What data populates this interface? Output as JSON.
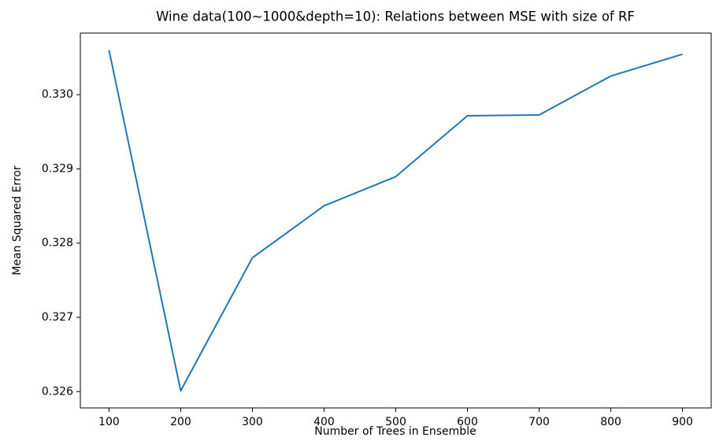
{
  "chart_data": {
    "type": "line",
    "title": "Wine data(100~1000&depth=10): Relations between MSE with size of RF",
    "x_label": "Number of Trees in Ensemble",
    "y_label": "Mean Squared Error",
    "x": [
      100,
      200,
      300,
      400,
      500,
      600,
      700,
      800,
      900
    ],
    "series": [
      {
        "color": "#1f77b4",
        "values": [
          0.330601,
          0.326011,
          0.327803,
          0.328503,
          0.328896,
          0.329716,
          0.329727,
          0.330251,
          0.330546
        ]
      }
    ],
    "xlim": [
      60,
      940
    ],
    "xticks": [
      100,
      200,
      300,
      400,
      500,
      600,
      700,
      800,
      900
    ],
    "ylim": [
      0.32578,
      0.33083
    ],
    "yticks": [
      {
        "value": 0.326,
        "label": "0.326"
      },
      {
        "value": 0.327,
        "label": "0.327"
      },
      {
        "value": 0.328,
        "label": "0.328"
      },
      {
        "value": 0.329,
        "label": "0.329"
      },
      {
        "value": 0.33,
        "label": "0.330"
      }
    ],
    "grid": false
  }
}
